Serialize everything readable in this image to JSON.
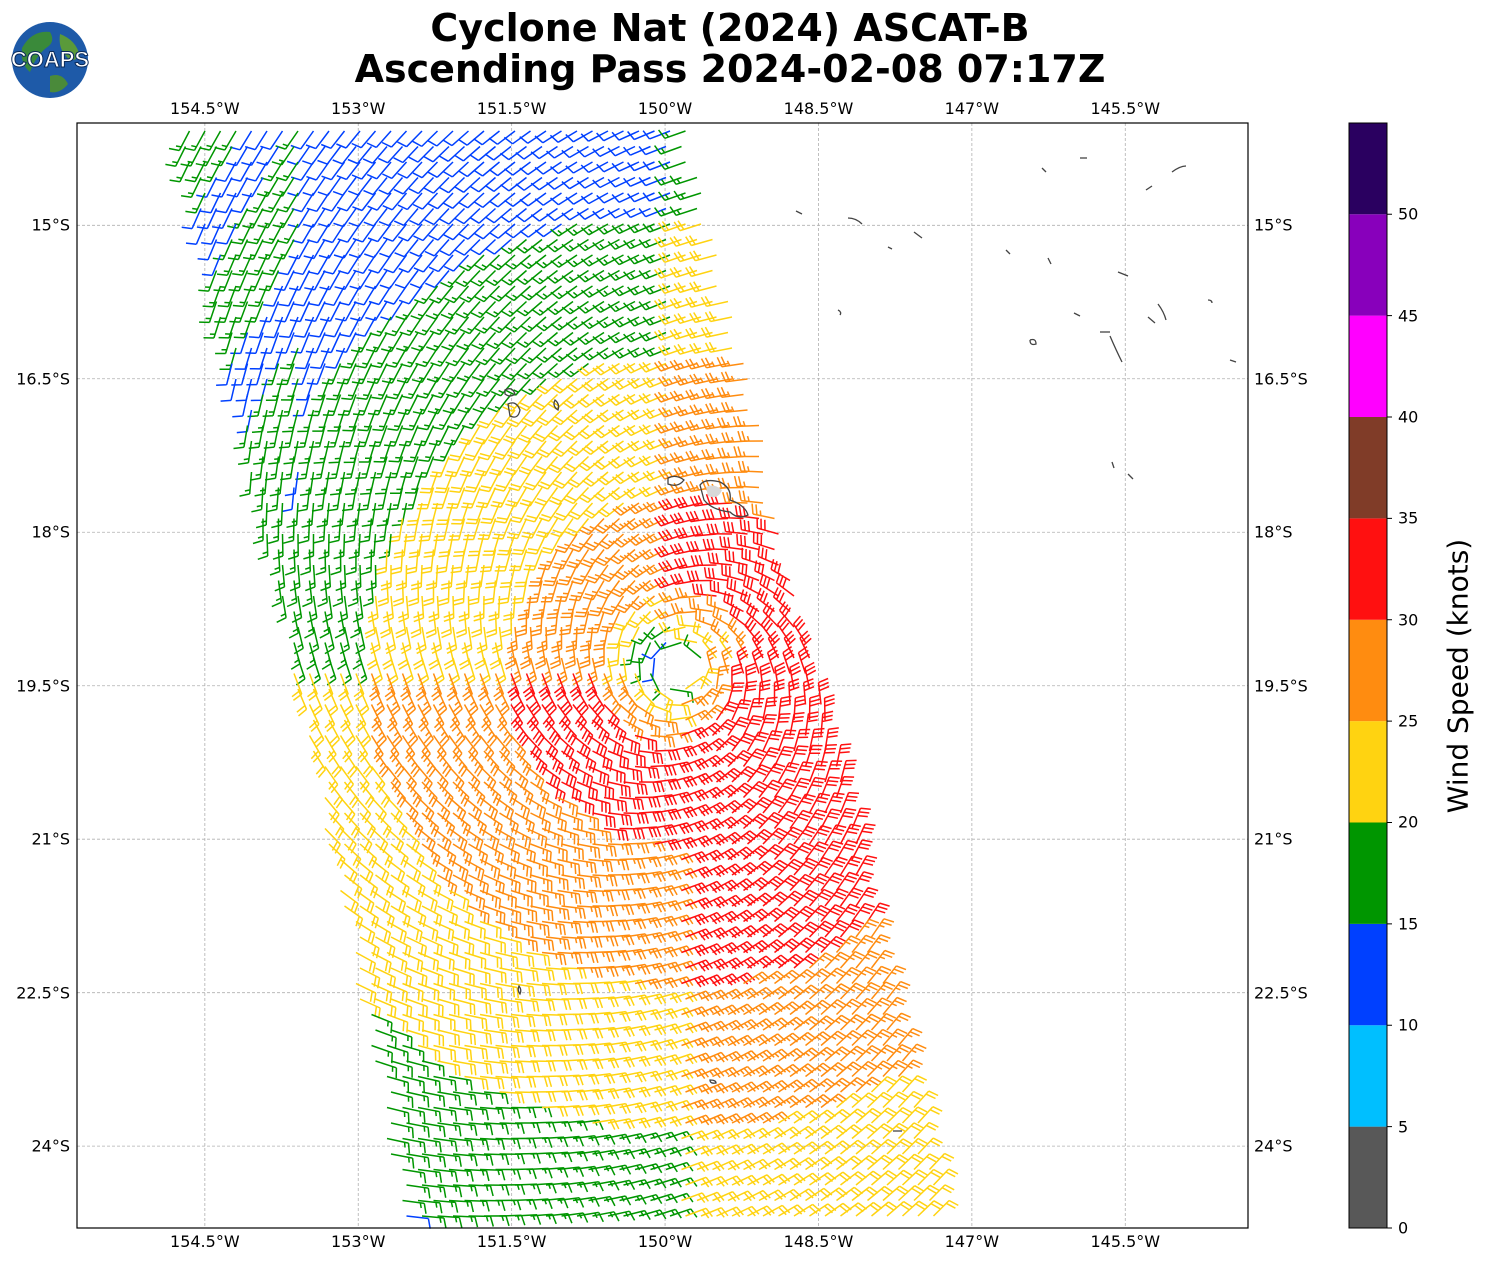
{
  "title": {
    "line1": "Cyclone Nat (2024) ASCAT-B",
    "line2": "Ascending Pass 2024-02-08 07:17Z"
  },
  "logo": {
    "text": "COAPS",
    "icon": "globe-logo-icon"
  },
  "axes": {
    "lon_ticks": [
      "154.5°W",
      "153°W",
      "151.5°W",
      "150°W",
      "148.5°W",
      "147°W",
      "145.5°W"
    ],
    "lat_ticks": [
      "15°S",
      "16.5°S",
      "18°S",
      "19.5°S",
      "21°S",
      "22.5°S",
      "24°S"
    ],
    "lon_range": [
      -155.75,
      -144.3
    ],
    "lat_range": [
      -24.8,
      -14.0
    ],
    "grid": true
  },
  "colorbar": {
    "label": "Wind Speed (knots)",
    "ticks": [
      "0",
      "5",
      "10",
      "15",
      "20",
      "25",
      "30",
      "35",
      "40",
      "45",
      "50"
    ],
    "colors": [
      "#585858",
      "#00bfff",
      "#0040ff",
      "#009600",
      "#ffd311",
      "#ff8c10",
      "#ff1010",
      "#803c28",
      "#ff00ff",
      "#8800bb",
      "#2a0060"
    ]
  },
  "map": {
    "center": {
      "lon": -149.85,
      "lat": -19.35
    },
    "swath": "ASCAT-B ascending pass",
    "islands": [
      "land-outline-icon"
    ]
  }
}
